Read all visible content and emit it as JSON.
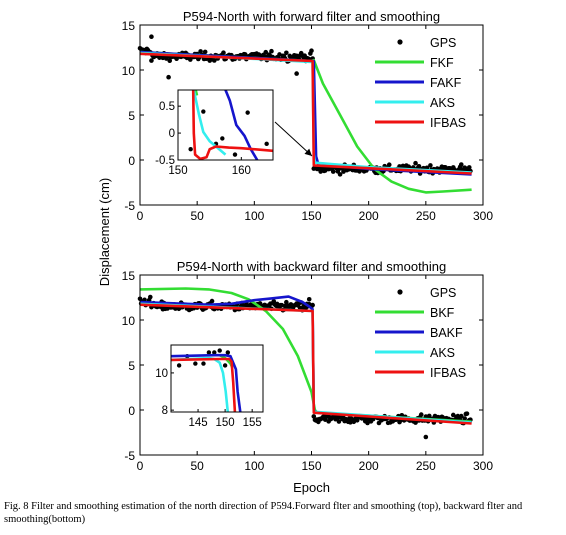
{
  "figure": {
    "ylabel": "Displacement (cm)",
    "xlabel": "Epoch",
    "caption": "Fig. 8 Filter  and  smoothing  estimation of the north direction of P594.Forward flter and smoothing (top), backward flter and smoothing(bottom)"
  },
  "chart_data": [
    {
      "type": "line",
      "title": "P594-North with forward filter and smoothing",
      "xlim": [
        0,
        300
      ],
      "ylim": [
        -5,
        15
      ],
      "xticks": [
        0,
        50,
        100,
        150,
        200,
        250,
        300
      ],
      "yticks": [
        -5,
        0,
        5,
        10,
        15
      ],
      "legend": [
        "GPS",
        "FKF",
        "FAKF",
        "AKS",
        "IFBAS"
      ],
      "legend_position": "top-right",
      "gps": {
        "step_epoch": 152,
        "before_level": 11.5,
        "after_level": -1.0,
        "noise_cm": 0.6,
        "n_points": 290,
        "outliers": [
          [
            10,
            13.7
          ],
          [
            25,
            9.2
          ],
          [
            137,
            9.6
          ]
        ]
      },
      "series": [
        {
          "name": "FKF",
          "color": "#33dd33",
          "points": [
            [
              0,
              12.0
            ],
            [
              150,
              11.0
            ],
            [
              152,
              11.1
            ],
            [
              160,
              8.5
            ],
            [
              175,
              5.0
            ],
            [
              190,
              1.5
            ],
            [
              205,
              -1.0
            ],
            [
              220,
              -2.4
            ],
            [
              235,
              -3.2
            ],
            [
              250,
              -3.6
            ],
            [
              265,
              -3.5
            ],
            [
              290,
              -3.3
            ]
          ]
        },
        {
          "name": "FAKF",
          "color": "#1515cc",
          "points": [
            [
              0,
              12.0
            ],
            [
              150,
              11.0
            ],
            [
              152,
              11.0
            ],
            [
              154,
              0.4
            ],
            [
              156,
              -0.5
            ],
            [
              200,
              -1.0
            ],
            [
              290,
              -1.6
            ]
          ]
        },
        {
          "name": "AKS",
          "color": "#33eeee",
          "points": [
            [
              0,
              11.9
            ],
            [
              150,
              10.9
            ],
            [
              151,
              10.9
            ],
            [
              152,
              0.6
            ],
            [
              153,
              -0.3
            ],
            [
              200,
              -0.8
            ],
            [
              290,
              -1.4
            ]
          ]
        },
        {
          "name": "IFBAS",
          "color": "#ee1111",
          "points": [
            [
              0,
              11.8
            ],
            [
              151,
              11.0
            ],
            [
              152,
              -0.6
            ],
            [
              290,
              -1.5
            ]
          ]
        }
      ],
      "inset": {
        "xlim": [
          150,
          165
        ],
        "ylim": [
          -0.5,
          0.8
        ],
        "xticks": [
          150,
          160
        ],
        "yticks": [
          -0.5,
          0,
          0.5
        ],
        "ytick_labels": [
          "-0.5",
          "0",
          "0.5"
        ],
        "gps": [
          [
            152,
            -0.3
          ],
          [
            154,
            0.4
          ],
          [
            156,
            -0.2
          ],
          [
            157,
            -0.1
          ],
          [
            159,
            -0.4
          ],
          [
            161,
            0.38
          ],
          [
            164,
            -0.2
          ]
        ],
        "series": [
          {
            "name": "FKF",
            "color": "#33dd33",
            "points": [
              [
                152.8,
                0.8
              ],
              [
                153.0,
                0.7
              ]
            ]
          },
          {
            "name": "FAKF",
            "color": "#1515cc",
            "points": [
              [
                157.5,
                0.8
              ],
              [
                158.2,
                0.6
              ],
              [
                159.2,
                0.15
              ],
              [
                160.5,
                -0.05
              ],
              [
                161.5,
                -0.3
              ],
              [
                162.5,
                -0.5
              ]
            ]
          },
          {
            "name": "AKS",
            "color": "#33eeee",
            "points": [
              [
                152.5,
                0.8
              ],
              [
                153.3,
                0.35
              ],
              [
                154.0,
                0.02
              ],
              [
                155.0,
                -0.15
              ],
              [
                156.5,
                -0.3
              ],
              [
                157.5,
                -0.4
              ]
            ]
          },
          {
            "name": "IFBAS",
            "color": "#ee1111",
            "points": [
              [
                152.4,
                0.8
              ],
              [
                152.5,
                0.0
              ],
              [
                152.7,
                -0.4
              ],
              [
                153.5,
                -0.48
              ],
              [
                154.5,
                -0.45
              ],
              [
                155.0,
                -0.3
              ],
              [
                156.0,
                -0.25
              ],
              [
                158.0,
                -0.27
              ],
              [
                160.0,
                -0.28
              ],
              [
                165.0,
                -0.33
              ]
            ]
          }
        ]
      }
    },
    {
      "type": "line",
      "title": "P594-North with backward filter and smoothing",
      "xlim": [
        0,
        300
      ],
      "ylim": [
        -5,
        15
      ],
      "xticks": [
        0,
        50,
        100,
        150,
        200,
        250,
        300
      ],
      "yticks": [
        -5,
        0,
        5,
        10,
        15
      ],
      "legend": [
        "GPS",
        "BKF",
        "BAKF",
        "AKS",
        "IFBAS"
      ],
      "legend_position": "top-right",
      "gps": {
        "step_epoch": 152,
        "before_level": 11.5,
        "after_level": -1.0,
        "noise_cm": 0.6,
        "n_points": 290,
        "outliers": [
          [
            20,
            11.2
          ],
          [
            148,
            12.3
          ],
          [
            250,
            -3.0
          ]
        ]
      },
      "series": [
        {
          "name": "BKF",
          "color": "#33dd33",
          "points": [
            [
              0,
              13.4
            ],
            [
              40,
              13.5
            ],
            [
              60,
              13.4
            ],
            [
              80,
              13.0
            ],
            [
              95,
              12.3
            ],
            [
              110,
              11.0
            ],
            [
              125,
              9.0
            ],
            [
              138,
              6.0
            ],
            [
              150,
              2.0
            ],
            [
              153,
              0.0
            ],
            [
              155,
              -0.3
            ],
            [
              290,
              -1.3
            ]
          ]
        },
        {
          "name": "BAKF",
          "color": "#1515cc",
          "points": [
            [
              0,
              12.0
            ],
            [
              60,
              11.7
            ],
            [
              80,
              11.8
            ],
            [
              100,
              12.2
            ],
            [
              115,
              12.4
            ],
            [
              130,
              12.6
            ],
            [
              142,
              12.0
            ],
            [
              148,
              11.5
            ],
            [
              151,
              11.2
            ],
            [
              152,
              0.0
            ],
            [
              154,
              -0.3
            ],
            [
              290,
              -1.4
            ]
          ]
        },
        {
          "name": "AKS",
          "color": "#33eeee",
          "points": [
            [
              0,
              11.8
            ],
            [
              150,
              11.0
            ],
            [
              151,
              11.0
            ],
            [
              152,
              -0.2
            ],
            [
              290,
              -1.4
            ]
          ]
        },
        {
          "name": "IFBAS",
          "color": "#ee1111",
          "points": [
            [
              0,
              11.7
            ],
            [
              151,
              11.0
            ],
            [
              152,
              -0.3
            ],
            [
              290,
              -1.5
            ]
          ]
        }
      ],
      "inset": {
        "xlim": [
          140,
          157
        ],
        "ylim": [
          7.9,
          11.5
        ],
        "xticks": [
          145,
          150,
          155
        ],
        "yticks": [
          8,
          10
        ],
        "ytick_labels": [
          "8",
          "10"
        ],
        "gps": [
          [
            141.5,
            10.4
          ],
          [
            143,
            10.9
          ],
          [
            144.5,
            10.5
          ],
          [
            146,
            10.5
          ],
          [
            147,
            11.1
          ],
          [
            148,
            11.1
          ],
          [
            149,
            11.2
          ],
          [
            150,
            10.4
          ],
          [
            150.5,
            11.1
          ]
        ],
        "series": [
          {
            "name": "BKF",
            "color": "#33dd33",
            "points": [
              [
                149,
                10.95
              ],
              [
                150,
                10.8
              ],
              [
                151,
                10.5
              ],
              [
                151.3,
                10.3
              ]
            ]
          },
          {
            "name": "BAKF",
            "color": "#1515cc",
            "points": [
              [
                140,
                10.9
              ],
              [
                148,
                10.95
              ],
              [
                150,
                10.95
              ],
              [
                151,
                10.9
              ],
              [
                152,
                10.2
              ],
              [
                152.3,
                9.0
              ],
              [
                152.8,
                7.9
              ]
            ]
          },
          {
            "name": "AKS",
            "color": "#33eeee",
            "points": [
              [
                140,
                10.7
              ],
              [
                147,
                10.8
              ],
              [
                148,
                10.75
              ],
              [
                149,
                10.55
              ],
              [
                149.6,
                10.0
              ],
              [
                150.1,
                9.0
              ],
              [
                150.5,
                7.9
              ]
            ]
          },
          {
            "name": "IFBAS",
            "color": "#ee1111",
            "points": [
              [
                140,
                10.7
              ],
              [
                149,
                10.75
              ],
              [
                150.8,
                10.75
              ],
              [
                151.2,
                10.6
              ],
              [
                151.5,
                9.5
              ],
              [
                151.8,
                7.9
              ]
            ]
          }
        ]
      }
    }
  ]
}
